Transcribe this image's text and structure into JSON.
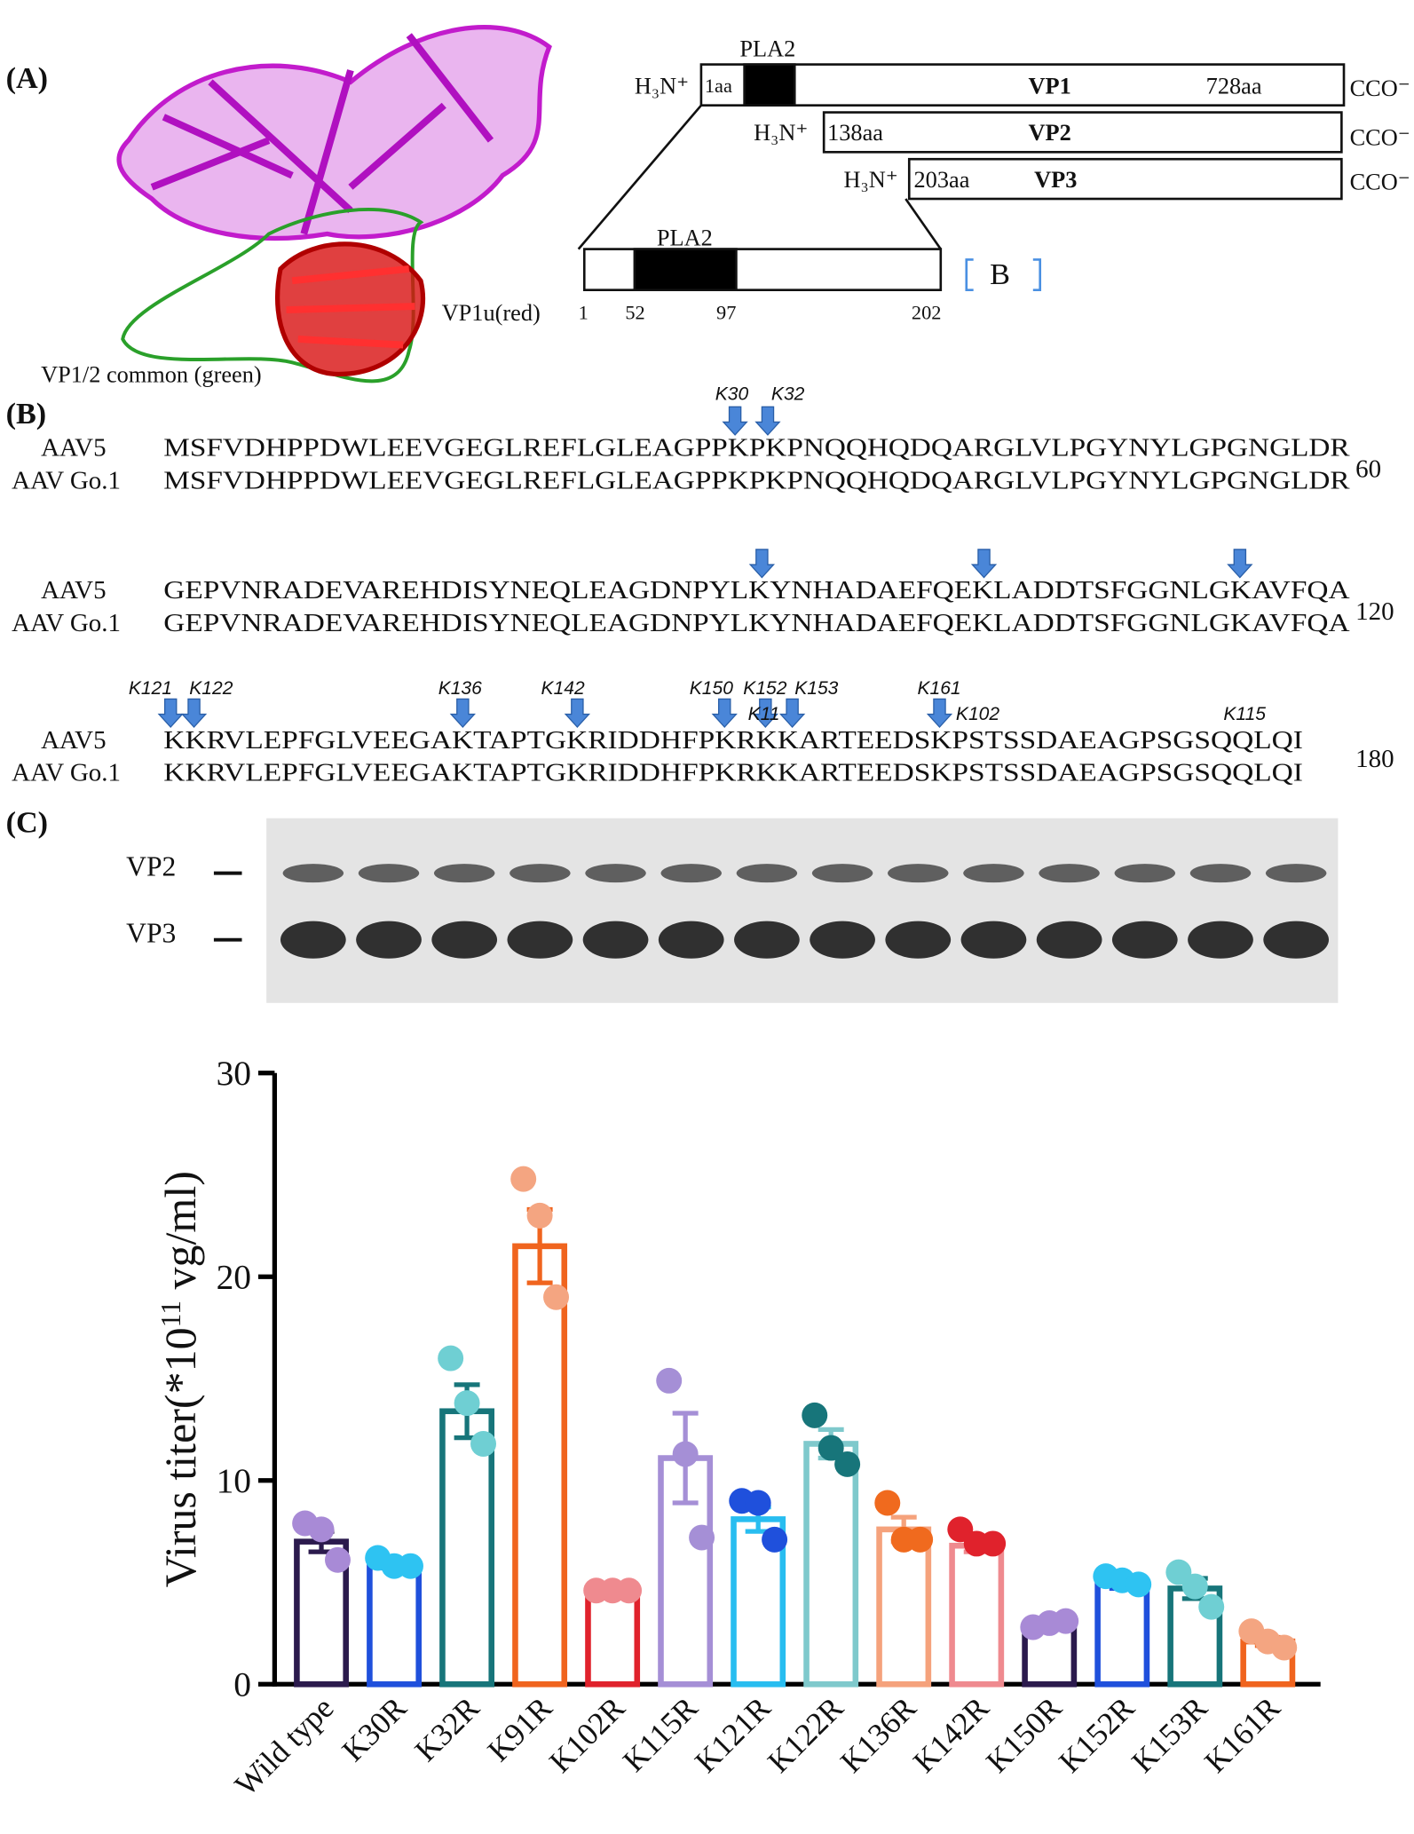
{
  "panel_a": {
    "label": "(A)",
    "vp1u": "VP1u(red)",
    "common": "VP1/2 common (green)",
    "pla2": "PLA2",
    "h3n": "H₃N⁺",
    "cco": "CCO⁻",
    "vp1_start": "1aa",
    "vp1": "VP1",
    "vp1_end": "728aa",
    "vp2_start": "138aa",
    "vp2": "VP2",
    "vp3_start": "203aa",
    "vp3": "VP3",
    "zoom_pla2": "PLA2",
    "zoom_ticks": [
      "1",
      "52",
      "97",
      "202"
    ],
    "ref": "B"
  },
  "panel_b": {
    "label": "(B)",
    "blocks": [
      {
        "rows": [
          {
            "name": "AAV5",
            "seq": "MSFVDHPPDWLEEVGEGLREFLGLEAGPPKPKPNQQHQDQARGLVLPGYNYLGPGNGLDR"
          },
          {
            "name": "AAV Go.1",
            "seq": "MSFVDHPPDWLEEVGEGLREFLGLEAGPPKPKPNQQHQDQARGLVLPGYNYLGPGNGLDR"
          }
        ],
        "number": "60",
        "sites": [
          "K30",
          "K32"
        ]
      },
      {
        "rows": [
          {
            "name": "AAV5",
            "seq": "GEPVNRADEVAREHDISYNEQLEAGDNPYLKYNHADAEFQEKLADDTSFGGNLGKAVFQA"
          },
          {
            "name": "AAV Go.1",
            "seq": "GEPVNRADEVAREHDISYNEQLEAGDNPYLKYNHADAEFQEKLADDTSFGGNLGKAVFQA"
          }
        ],
        "number": "120",
        "sites": []
      },
      {
        "rows": [
          {
            "name": "AAV5",
            "seq": "KKRVLEPFGLVEEGAKTAPTGKRIDDHFPKRKKARTEEDSKPSTSSDAEAGPSGSQQLQI"
          },
          {
            "name": "AAV Go.1",
            "seq": "KKRVLEPFGLVEEGAKTAPTGKRIDDHFPKRKKARTEEDSKPSTSSDAEAGPSGSQQLQI"
          }
        ],
        "number": "180",
        "sites": [
          "K121",
          "K122",
          "K136",
          "K142",
          "K150",
          "K152",
          "K153",
          "K161",
          "K11",
          "K102",
          "K115"
        ]
      }
    ]
  },
  "panel_c": {
    "label": "(C)",
    "bands": [
      "VP2",
      "VP3"
    ]
  },
  "chart_data": {
    "type": "bar",
    "y_label": [
      "Virus titer(*10",
      "11",
      " vg/ml)"
    ],
    "categories": [
      "Wild type",
      "K30R",
      "K32R",
      "K91R",
      "K102R",
      "K115R",
      "K121R",
      "K122R",
      "K136R",
      "K142R",
      "K150R",
      "K152R",
      "K153R",
      "K161R"
    ],
    "values": [
      7.0,
      5.9,
      13.4,
      21.5,
      4.5,
      11.1,
      8.1,
      11.8,
      7.6,
      6.8,
      2.9,
      4.9,
      4.7,
      2.1
    ],
    "errors": [
      0.5,
      0.2,
      1.3,
      1.8,
      0.1,
      2.2,
      0.6,
      0.7,
      0.6,
      0.3,
      0.1,
      0.2,
      0.5,
      0.2
    ],
    "points": [
      [
        7.9,
        7.6,
        6.1
      ],
      [
        6.2,
        5.8,
        5.8
      ],
      [
        16.0,
        13.8,
        11.8
      ],
      [
        24.8,
        23.0,
        19.0
      ],
      [
        4.6,
        4.6,
        4.6
      ],
      [
        14.9,
        11.3,
        7.2
      ],
      [
        9.0,
        8.9,
        7.1
      ],
      [
        13.2,
        11.6,
        10.8
      ],
      [
        8.9,
        7.1,
        7.1
      ],
      [
        7.6,
        6.9,
        6.9
      ],
      [
        2.8,
        3.0,
        3.1
      ],
      [
        5.3,
        5.1,
        4.9
      ],
      [
        5.5,
        4.8,
        3.8
      ],
      [
        2.6,
        2.1,
        1.8
      ]
    ],
    "colors": [
      "#2b1a4d",
      "#1f50dc",
      "#17757a",
      "#f0641e",
      "#e0222c",
      "#a58fd6",
      "#28bdf0",
      "#7fc9cc",
      "#f5a27c",
      "#ef8a8f",
      "#2b1a4d",
      "#1f50dc",
      "#17757a",
      "#f0641e"
    ],
    "point_colors": [
      "#a88ad6",
      "#2ec3f2",
      "#6fcfd3",
      "#f4a581",
      "#ef8a8f",
      "#a58fd6",
      "#1f50dc",
      "#17757a",
      "#f06a1e",
      "#e0222c",
      "#a88ad6",
      "#2ec3f2",
      "#6fcfd3",
      "#f4a581"
    ],
    "ylim": [
      0,
      30
    ],
    "yticks": [
      0,
      10,
      20,
      30
    ]
  }
}
